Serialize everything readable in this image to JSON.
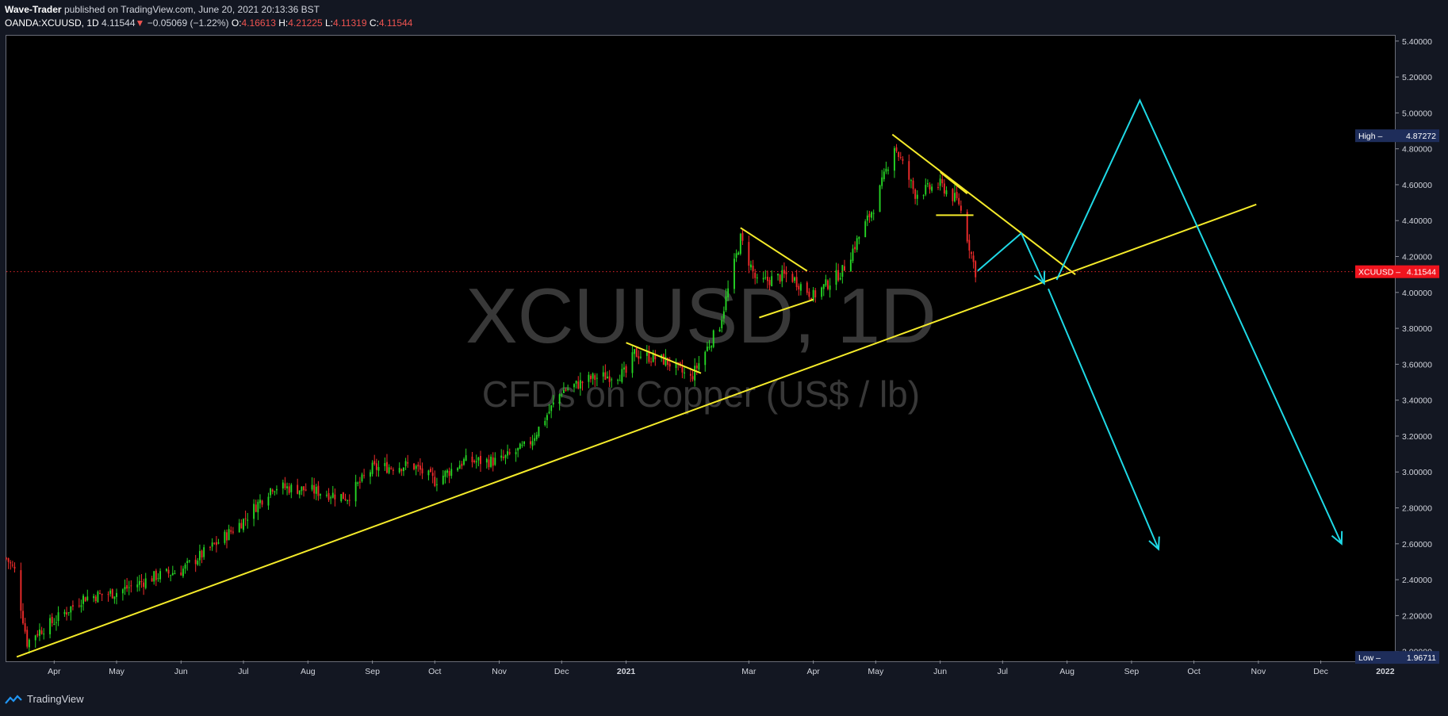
{
  "header": {
    "author": "Wave-Trader",
    "published_text": "published on TradingView.com, June 20, 2021 20:13:36 BST",
    "symbol": "OANDA:XCUUSD, 1D",
    "last": "4.11544",
    "arrow": "▼",
    "change": "−0.05069 (−1.22%)",
    "o_label": "O:",
    "o": "4.16613",
    "h_label": "H:",
    "h": "4.21225",
    "l_label": "L:",
    "l": "4.11319",
    "c_label": "C:",
    "c": "4.11544"
  },
  "watermark": {
    "title": "XCUUSD, 1D",
    "subtitle": "CFDs on Copper (US$ / lb)"
  },
  "footer": {
    "brand": "TradingView"
  },
  "colors": {
    "up": "#26d625",
    "down": "#ef2b2b",
    "trendline": "#f5eb2a",
    "projection": "#1fd9e6",
    "price_badge": "#f0141e",
    "high_low_badge": "#1e2d5a",
    "axis_text": "#d1d4dc",
    "background": "#000000"
  },
  "chart_data": {
    "type": "candlestick",
    "symbol": "XCUUSD",
    "timeframe": "1D",
    "ylim": [
      1.95,
      5.43
    ],
    "y_ticks": [
      {
        "label": "5.40000",
        "value": 5.4
      },
      {
        "label": "5.20000",
        "value": 5.2
      },
      {
        "label": "5.00000",
        "value": 5.0
      },
      {
        "label": "4.80000",
        "value": 4.8
      },
      {
        "label": "4.60000",
        "value": 4.6
      },
      {
        "label": "4.40000",
        "value": 4.4
      },
      {
        "label": "4.20000",
        "value": 4.2
      },
      {
        "label": "4.00000",
        "value": 4.0
      },
      {
        "label": "3.80000",
        "value": 3.8
      },
      {
        "label": "3.60000",
        "value": 3.6
      },
      {
        "label": "3.40000",
        "value": 3.4
      },
      {
        "label": "3.20000",
        "value": 3.2
      },
      {
        "label": "3.00000",
        "value": 3.0
      },
      {
        "label": "2.80000",
        "value": 2.8
      },
      {
        "label": "2.60000",
        "value": 2.6
      },
      {
        "label": "2.40000",
        "value": 2.4
      },
      {
        "label": "2.20000",
        "value": 2.2
      },
      {
        "label": "2.00000",
        "value": 2.0
      }
    ],
    "x_ticks": [
      {
        "label": "Apr",
        "date": "2020-04-01"
      },
      {
        "label": "May",
        "date": "2020-05-01"
      },
      {
        "label": "Jun",
        "date": "2020-06-01"
      },
      {
        "label": "Jul",
        "date": "2020-07-01"
      },
      {
        "label": "Aug",
        "date": "2020-08-01"
      },
      {
        "label": "Sep",
        "date": "2020-09-01"
      },
      {
        "label": "Oct",
        "date": "2020-10-01"
      },
      {
        "label": "Nov",
        "date": "2020-11-01"
      },
      {
        "label": "Dec",
        "date": "2020-12-01"
      },
      {
        "label": "2021",
        "date": "2021-01-01"
      },
      {
        "label": "Mar",
        "date": "2021-03-01"
      },
      {
        "label": "Apr",
        "date": "2021-04-01"
      },
      {
        "label": "May",
        "date": "2021-05-01"
      },
      {
        "label": "Jun",
        "date": "2021-06-01"
      },
      {
        "label": "Jul",
        "date": "2021-07-01"
      },
      {
        "label": "Aug",
        "date": "2021-08-01"
      },
      {
        "label": "Sep",
        "date": "2021-09-01"
      },
      {
        "label": "Oct",
        "date": "2021-10-01"
      },
      {
        "label": "Nov",
        "date": "2021-11-01"
      },
      {
        "label": "Dec",
        "date": "2021-12-01"
      },
      {
        "label": "2022",
        "date": "2022-01-01"
      }
    ],
    "x_range": [
      "2020-03-09",
      "2022-01-06"
    ],
    "closes": [
      {
        "date": "2020-03-09",
        "close": 2.52
      },
      {
        "date": "2020-03-13",
        "close": 2.45
      },
      {
        "date": "2020-03-19",
        "close": 2.05
      },
      {
        "date": "2020-03-23",
        "close": 2.1
      },
      {
        "date": "2020-04-01",
        "close": 2.17
      },
      {
        "date": "2020-04-15",
        "close": 2.3
      },
      {
        "date": "2020-05-01",
        "close": 2.33
      },
      {
        "date": "2020-05-20",
        "close": 2.42
      },
      {
        "date": "2020-06-01",
        "close": 2.45
      },
      {
        "date": "2020-06-20",
        "close": 2.62
      },
      {
        "date": "2020-07-01",
        "close": 2.73
      },
      {
        "date": "2020-07-15",
        "close": 2.92
      },
      {
        "date": "2020-08-01",
        "close": 2.9
      },
      {
        "date": "2020-08-20",
        "close": 2.86
      },
      {
        "date": "2020-09-01",
        "close": 3.02
      },
      {
        "date": "2020-09-20",
        "close": 3.04
      },
      {
        "date": "2020-10-01",
        "close": 2.95
      },
      {
        "date": "2020-10-15",
        "close": 3.06
      },
      {
        "date": "2020-11-01",
        "close": 3.06
      },
      {
        "date": "2020-11-15",
        "close": 3.15
      },
      {
        "date": "2020-12-01",
        "close": 3.45
      },
      {
        "date": "2020-12-15",
        "close": 3.52
      },
      {
        "date": "2021-01-01",
        "close": 3.55
      },
      {
        "date": "2021-01-05",
        "close": 3.66
      },
      {
        "date": "2021-01-20",
        "close": 3.62
      },
      {
        "date": "2021-02-01",
        "close": 3.52
      },
      {
        "date": "2021-02-15",
        "close": 3.82
      },
      {
        "date": "2021-02-25",
        "close": 4.3
      },
      {
        "date": "2021-03-05",
        "close": 4.05
      },
      {
        "date": "2021-03-20",
        "close": 4.1
      },
      {
        "date": "2021-04-01",
        "close": 3.98
      },
      {
        "date": "2021-04-15",
        "close": 4.12
      },
      {
        "date": "2021-05-01",
        "close": 4.5
      },
      {
        "date": "2021-05-10",
        "close": 4.82
      },
      {
        "date": "2021-05-20",
        "close": 4.55
      },
      {
        "date": "2021-06-01",
        "close": 4.6
      },
      {
        "date": "2021-06-10",
        "close": 4.5
      },
      {
        "date": "2021-06-18",
        "close": 4.11544
      }
    ],
    "current_price": {
      "symbol_label": "XCUUSD",
      "value": 4.11544,
      "label": "4.11544"
    },
    "high": {
      "label": "High",
      "value": 4.87272,
      "value_label": "4.87272"
    },
    "low": {
      "label": "Low",
      "value": 1.96711,
      "value_label": "1.96711"
    },
    "drawings": {
      "trendlines": [
        {
          "name": "main-support",
          "from": [
            "2020-03-14",
            1.97
          ],
          "to": [
            "2021-10-31",
            4.49
          ]
        },
        {
          "name": "mid-resistance",
          "from": [
            "2021-05-09",
            4.88
          ],
          "to": [
            "2021-08-05",
            4.1
          ]
        },
        {
          "name": "mid-base",
          "from": [
            "2021-05-30",
            4.43
          ],
          "to": [
            "2021-06-17",
            4.43
          ]
        },
        {
          "name": "jan-wedge",
          "from": [
            "2021-01-01",
            3.72
          ],
          "to": [
            "2021-02-06",
            3.55
          ]
        },
        {
          "name": "feb-top",
          "from": [
            "2021-02-25",
            4.36
          ],
          "to": [
            "2021-03-29",
            4.12
          ]
        },
        {
          "name": "feb-bottom",
          "from": [
            "2021-03-06",
            3.86
          ],
          "to": [
            "2021-04-01",
            3.96
          ]
        },
        {
          "name": "small-top",
          "from": [
            "2021-06-01",
            4.67
          ],
          "to": [
            "2021-06-14",
            4.55
          ]
        }
      ],
      "projections": [
        {
          "name": "rally-then-drop",
          "path": [
            [
              "2021-06-19",
              4.12
            ],
            [
              "2021-07-10",
              4.33
            ],
            [
              "2021-07-21",
              4.05
            ]
          ]
        },
        {
          "name": "breakdown",
          "path": [
            [
              "2021-07-23",
              4.02
            ],
            [
              "2021-09-14",
              2.57
            ]
          ]
        },
        {
          "name": "major-rally",
          "path": [
            [
              "2021-07-27",
              4.07
            ],
            [
              "2021-09-05",
              5.07
            ],
            [
              "2021-12-11",
              2.6
            ]
          ]
        }
      ]
    }
  }
}
